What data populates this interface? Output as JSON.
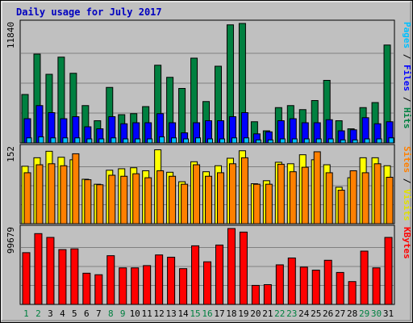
{
  "chart_data": {
    "type": "bar",
    "title": "Daily usage for July 2017",
    "categories": [
      "1",
      "2",
      "3",
      "4",
      "5",
      "6",
      "7",
      "8",
      "9",
      "10",
      "11",
      "12",
      "13",
      "14",
      "15",
      "16",
      "17",
      "18",
      "19",
      "20",
      "21",
      "22",
      "23",
      "24",
      "25",
      "26",
      "27",
      "28",
      "29",
      "30",
      "31"
    ],
    "weekend_days": [
      "1",
      "2",
      "8",
      "9",
      "15",
      "16",
      "22",
      "23",
      "29",
      "30"
    ],
    "panels": [
      {
        "id": "hits",
        "ymax": 11840,
        "ymax_label": "11840",
        "axis_label_parts": [
          {
            "text": "Pages",
            "color": "#00c0ff"
          },
          {
            "text": " / ",
            "color": "#000000"
          },
          {
            "text": "Files",
            "color": "#0000ff"
          },
          {
            "text": " / ",
            "color": "#000000"
          },
          {
            "text": "Hits",
            "color": "#008040"
          }
        ],
        "series": [
          {
            "name": "Hits",
            "color": "#008040",
            "values": [
              4800,
              8800,
              6800,
              8500,
              6900,
              3700,
              2200,
              5500,
              2800,
              2900,
              3600,
              7700,
              6500,
              5400,
              8400,
              4100,
              7600,
              11700,
              11900,
              2100,
              1200,
              3500,
              3700,
              3300,
              4200,
              6200,
              2200,
              1400,
              3500,
              4000,
              9700
            ]
          },
          {
            "name": "Files",
            "color": "#0000ff",
            "values": [
              2400,
              3700,
              3000,
              2400,
              2600,
              1600,
              1400,
              2600,
              1900,
              2000,
              2000,
              2900,
              2000,
              1000,
              2000,
              2200,
              2200,
              2600,
              3000,
              900,
              1100,
              2200,
              2400,
              2000,
              2000,
              2300,
              1200,
              1300,
              2500,
              1900,
              2100
            ]
          },
          {
            "name": "Pages",
            "color": "#00c0ff",
            "values": [
              500,
              600,
              500,
              500,
              500,
              400,
              400,
              500,
              400,
              400,
              400,
              600,
              500,
              400,
              500,
              400,
              400,
              500,
              500,
              300,
              300,
              400,
              400,
              400,
              400,
              400,
              300,
              300,
              400,
              400,
              500
            ]
          }
        ]
      },
      {
        "id": "visits",
        "ymax": 152,
        "ymax_label": "152",
        "axis_label_parts": [
          {
            "text": "Sites",
            "color": "#ff8000"
          },
          {
            "text": " / ",
            "color": "#000000"
          },
          {
            "text": "Visits",
            "color": "#e0e000"
          }
        ],
        "series": [
          {
            "name": "Visits",
            "color": "#ffff00",
            "values": [
              115,
              132,
              145,
              133,
              128,
              89,
              79,
              107,
              110,
              112,
              106,
              148,
              103,
              84,
              124,
              104,
              116,
              131,
              146,
              80,
              86,
              123,
              120,
              138,
              128,
              118,
              73,
              92,
              132,
              132,
              116
            ]
          },
          {
            "name": "Sites",
            "color": "#ff8000",
            "values": [
              102,
              118,
              120,
              116,
              140,
              88,
              78,
              97,
              95,
              100,
              92,
              106,
              95,
              79,
              118,
              95,
              102,
              120,
              132,
              79,
              79,
              119,
              104,
              113,
              144,
              102,
              67,
              106,
              102,
              120,
              93
            ]
          }
        ]
      },
      {
        "id": "kbytes",
        "ymax": 99679,
        "ymax_label": "99679",
        "axis_label_parts": [
          {
            "text": "KBytes",
            "color": "#ff0000"
          }
        ],
        "series": [
          {
            "name": "KBytes",
            "color": "#ff0000",
            "values": [
              68000,
              93000,
              88000,
              72000,
              73000,
              41000,
              39000,
              64000,
              48000,
              48000,
              51000,
              65000,
              62000,
              47000,
              77000,
              56000,
              78000,
              101000,
              95000,
              25000,
              26000,
              52000,
              61000,
              49000,
              45000,
              58000,
              42000,
              30000,
              70000,
              48000,
              88000
            ]
          }
        ]
      }
    ]
  }
}
